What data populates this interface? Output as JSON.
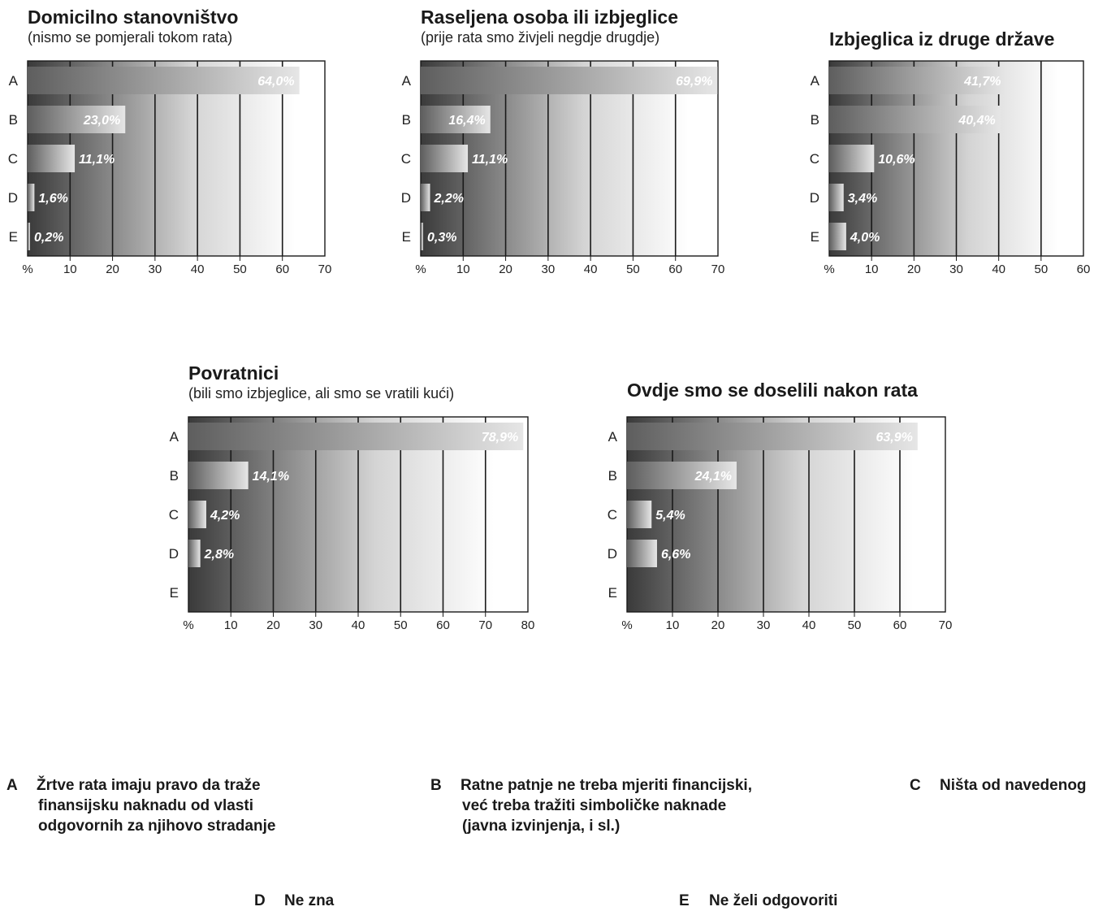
{
  "chart_data": [
    {
      "type": "bar",
      "title": "Domicilno stanovništvo",
      "subtitle": "(nismo se pomjerali tokom rata)",
      "categories": [
        "A",
        "B",
        "C",
        "D",
        "E"
      ],
      "values": [
        64.0,
        23.0,
        11.1,
        1.6,
        0.2
      ],
      "labels": [
        "64,0%",
        "23,0%",
        "11,1%",
        "1,6%",
        "0,2%"
      ],
      "xlim": [
        0,
        70
      ],
      "xticks": [
        "%",
        "10",
        "20",
        "30",
        "40",
        "50",
        "60",
        "70"
      ],
      "grid": true
    },
    {
      "type": "bar",
      "title": "Raseljena osoba ili izbjeglice",
      "subtitle": "(prije rata smo živjeli negdje drugdje)",
      "categories": [
        "A",
        "B",
        "C",
        "D",
        "E"
      ],
      "values": [
        69.9,
        16.4,
        11.1,
        2.2,
        0.3
      ],
      "labels": [
        "69,9%",
        "16,4%",
        "11,1%",
        "2,2%",
        "0,3%"
      ],
      "xlim": [
        0,
        70
      ],
      "xticks": [
        "%",
        "10",
        "20",
        "30",
        "40",
        "50",
        "60",
        "70"
      ],
      "grid": true
    },
    {
      "type": "bar",
      "title": "Izbjeglica iz druge države",
      "subtitle": "",
      "categories": [
        "A",
        "B",
        "C",
        "D",
        "E"
      ],
      "values": [
        41.7,
        40.4,
        10.6,
        3.4,
        4.0
      ],
      "labels": [
        "41,7%",
        "40,4%",
        "10,6%",
        "3,4%",
        "4,0%"
      ],
      "xlim": [
        0,
        60
      ],
      "xticks": [
        "%",
        "10",
        "20",
        "30",
        "40",
        "50",
        "60"
      ],
      "grid": true
    },
    {
      "type": "bar",
      "title": "Povratnici",
      "subtitle": "(bili smo izbjeglice, ali smo se vratili kući)",
      "categories": [
        "A",
        "B",
        "C",
        "D",
        "E"
      ],
      "values": [
        78.9,
        14.1,
        4.2,
        2.8,
        0
      ],
      "labels": [
        "78,9%",
        "14,1%",
        "4,2%",
        "2,8%",
        ""
      ],
      "xlim": [
        0,
        80
      ],
      "xticks": [
        "%",
        "10",
        "20",
        "30",
        "40",
        "50",
        "60",
        "70",
        "80"
      ],
      "grid": true
    },
    {
      "type": "bar",
      "title": "Ovdje smo se doselili nakon rata",
      "subtitle": "",
      "categories": [
        "A",
        "B",
        "C",
        "D",
        "E"
      ],
      "values": [
        63.9,
        24.1,
        5.4,
        6.6,
        0
      ],
      "labels": [
        "63,9%",
        "24,1%",
        "5,4%",
        "6,6%",
        ""
      ],
      "xlim": [
        0,
        70
      ],
      "xticks": [
        "%",
        "10",
        "20",
        "30",
        "40",
        "50",
        "60",
        "70"
      ],
      "grid": true
    }
  ],
  "legend": [
    {
      "letter": "A",
      "lines": [
        "Žrtve rata imaju pravo da traže",
        "finansijsku naknadu od vlasti",
        "odgovornih za njihovo stradanje"
      ]
    },
    {
      "letter": "B",
      "lines": [
        "Ratne patnje ne treba mjeriti financijski,",
        "već treba tražiti simboličke naknade",
        "(javna izvinjenja, i sl.)"
      ]
    },
    {
      "letter": "C",
      "lines": [
        "Ništa od navedenog"
      ]
    },
    {
      "letter": "D",
      "lines": [
        "Ne zna"
      ]
    },
    {
      "letter": "E",
      "lines": [
        "Ne želi odgovoriti"
      ]
    }
  ],
  "colors": {
    "bar_light": "#e6e6e6",
    "bar_dark": "#5e5e5e",
    "bg_dark": "#3a3a3a",
    "bg_light": "#ffffff",
    "grid": "#1a1a1a"
  }
}
